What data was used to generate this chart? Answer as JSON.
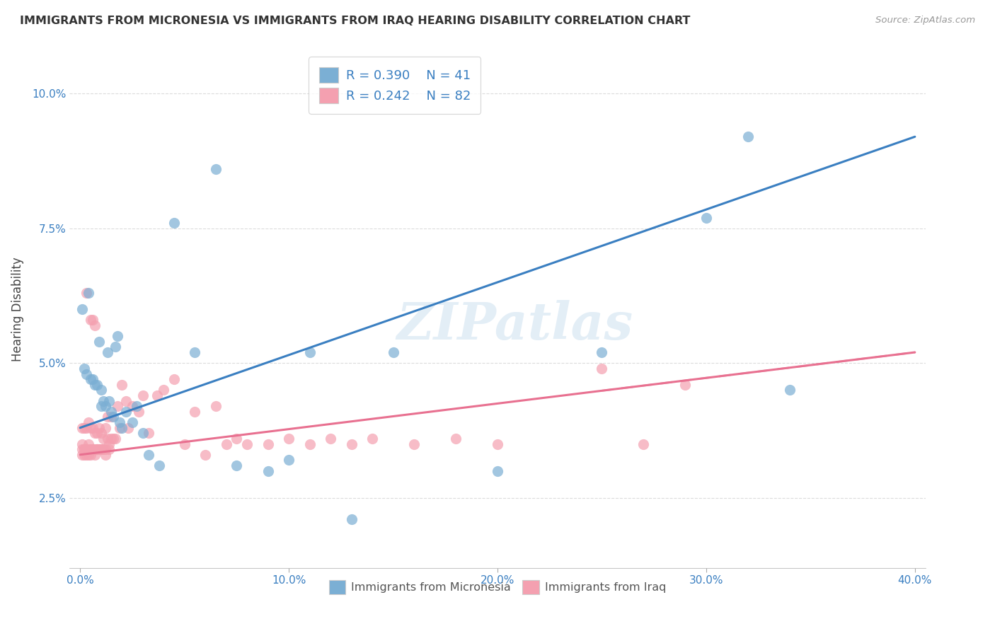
{
  "title": "IMMIGRANTS FROM MICRONESIA VS IMMIGRANTS FROM IRAQ HEARING DISABILITY CORRELATION CHART",
  "source": "Source: ZipAtlas.com",
  "ylabel": "Hearing Disability",
  "yticks": [
    0.025,
    0.05,
    0.075,
    0.1
  ],
  "ytick_labels": [
    "2.5%",
    "5.0%",
    "7.5%",
    "10.0%"
  ],
  "xticks": [
    0.0,
    0.1,
    0.2,
    0.3,
    0.4
  ],
  "xtick_labels": [
    "0.0%",
    "10.0%",
    "20.0%",
    "30.0%",
    "40.0%"
  ],
  "xlim": [
    -0.005,
    0.405
  ],
  "ylim": [
    0.012,
    0.108
  ],
  "micronesia_color": "#7bafd4",
  "iraq_color": "#f4a0b0",
  "micronesia_line_color": "#3a7fc1",
  "iraq_line_color": "#e87090",
  "R_micronesia": 0.39,
  "N_micronesia": 41,
  "R_iraq": 0.242,
  "N_iraq": 82,
  "mic_line_x0": 0.0,
  "mic_line_y0": 0.038,
  "mic_line_x1": 0.4,
  "mic_line_y1": 0.092,
  "iraq_line_x0": 0.0,
  "iraq_line_y0": 0.033,
  "iraq_line_x1": 0.4,
  "iraq_line_y1": 0.052,
  "micronesia_x": [
    0.001,
    0.002,
    0.003,
    0.004,
    0.005,
    0.006,
    0.007,
    0.008,
    0.009,
    0.01,
    0.01,
    0.011,
    0.012,
    0.013,
    0.014,
    0.015,
    0.016,
    0.017,
    0.018,
    0.019,
    0.02,
    0.022,
    0.025,
    0.027,
    0.03,
    0.033,
    0.038,
    0.045,
    0.055,
    0.065,
    0.075,
    0.09,
    0.1,
    0.11,
    0.13,
    0.15,
    0.2,
    0.25,
    0.3,
    0.32,
    0.34
  ],
  "micronesia_y": [
    0.06,
    0.049,
    0.048,
    0.063,
    0.047,
    0.047,
    0.046,
    0.046,
    0.054,
    0.045,
    0.042,
    0.043,
    0.042,
    0.052,
    0.043,
    0.041,
    0.04,
    0.053,
    0.055,
    0.039,
    0.038,
    0.041,
    0.039,
    0.042,
    0.037,
    0.033,
    0.031,
    0.076,
    0.052,
    0.086,
    0.031,
    0.03,
    0.032,
    0.052,
    0.021,
    0.052,
    0.03,
    0.052,
    0.077,
    0.092,
    0.045
  ],
  "iraq_x": [
    0.001,
    0.001,
    0.001,
    0.002,
    0.002,
    0.002,
    0.003,
    0.003,
    0.003,
    0.004,
    0.004,
    0.004,
    0.005,
    0.005,
    0.005,
    0.006,
    0.006,
    0.006,
    0.007,
    0.007,
    0.007,
    0.008,
    0.008,
    0.008,
    0.009,
    0.009,
    0.01,
    0.01,
    0.011,
    0.011,
    0.012,
    0.012,
    0.013,
    0.013,
    0.014,
    0.015,
    0.015,
    0.016,
    0.017,
    0.018,
    0.019,
    0.02,
    0.022,
    0.023,
    0.025,
    0.028,
    0.03,
    0.033,
    0.037,
    0.04,
    0.045,
    0.05,
    0.055,
    0.06,
    0.065,
    0.07,
    0.075,
    0.08,
    0.09,
    0.1,
    0.11,
    0.12,
    0.13,
    0.14,
    0.16,
    0.18,
    0.2,
    0.25,
    0.27,
    0.29,
    0.001,
    0.002,
    0.003,
    0.004,
    0.005,
    0.006,
    0.007,
    0.008,
    0.009,
    0.01,
    0.012,
    0.014
  ],
  "iraq_y": [
    0.035,
    0.038,
    0.033,
    0.034,
    0.038,
    0.033,
    0.063,
    0.038,
    0.033,
    0.035,
    0.039,
    0.033,
    0.058,
    0.038,
    0.033,
    0.058,
    0.038,
    0.034,
    0.057,
    0.037,
    0.033,
    0.034,
    0.037,
    0.034,
    0.034,
    0.038,
    0.034,
    0.037,
    0.034,
    0.036,
    0.033,
    0.038,
    0.036,
    0.04,
    0.035,
    0.036,
    0.04,
    0.036,
    0.036,
    0.042,
    0.038,
    0.046,
    0.043,
    0.038,
    0.042,
    0.041,
    0.044,
    0.037,
    0.044,
    0.045,
    0.047,
    0.035,
    0.041,
    0.033,
    0.042,
    0.035,
    0.036,
    0.035,
    0.035,
    0.036,
    0.035,
    0.036,
    0.035,
    0.036,
    0.035,
    0.036,
    0.035,
    0.049,
    0.035,
    0.046,
    0.034,
    0.034,
    0.034,
    0.034,
    0.034,
    0.034,
    0.034,
    0.034,
    0.034,
    0.034,
    0.034,
    0.034
  ],
  "background_color": "#ffffff",
  "grid_color": "#d8d8d8"
}
